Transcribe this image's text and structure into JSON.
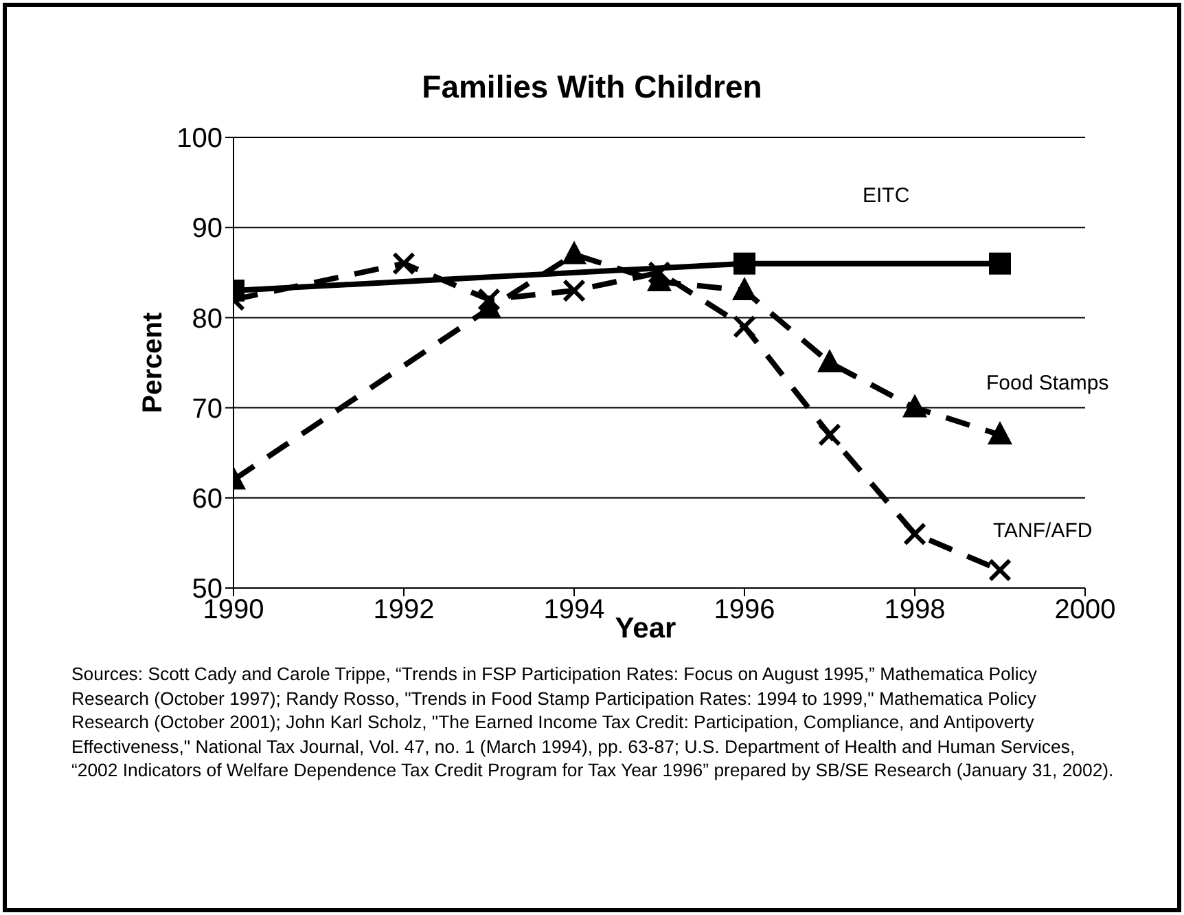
{
  "chart_data": {
    "type": "line",
    "title": "Families With Children",
    "xlabel": "Year",
    "ylabel": "Percent",
    "xlim": [
      1990,
      2000
    ],
    "xticks": [
      1990,
      1992,
      1994,
      1996,
      1998,
      2000
    ],
    "ylim": [
      50,
      100
    ],
    "yticks": [
      50,
      60,
      70,
      80,
      90,
      100
    ],
    "grid": "y",
    "legend": false,
    "series": [
      {
        "name": "EITC",
        "color": "#000000",
        "marker": "square",
        "line_style": "solid",
        "x": [
          1990,
          1996,
          1999
        ],
        "values": [
          83,
          86,
          86
        ]
      },
      {
        "name": "Food Stamps",
        "color": "#000000",
        "marker": "triangle",
        "line_style": "dashed",
        "x": [
          1990,
          1993,
          1994,
          1995,
          1996,
          1997,
          1998,
          1999
        ],
        "values": [
          62,
          81,
          87,
          84,
          83,
          75,
          70,
          67
        ]
      },
      {
        "name": "TANF/AFD",
        "color": "#000000",
        "marker": "cross",
        "line_style": "dashed",
        "x": [
          1990,
          1992,
          1993,
          1994,
          1995,
          1996,
          1997,
          1998,
          1999
        ],
        "values": [
          82,
          86,
          82,
          83,
          85,
          79,
          67,
          56,
          52
        ]
      }
    ],
    "annotations": [
      "Sources:  Scott Cady and Carole Trippe, “Trends in FSP Participation Rates: Focus on August 1995,” Mathematica Policy Research (October 1997);   Randy Rosso, \"Trends in Food Stamp Participation Rates: 1994 to 1999,\" Mathematica Policy Research (October 2001);  John Karl Scholz, \"The Earned Income Tax Credit: Participation, Compliance, and Antipoverty Effectiveness,\" National Tax Journal, Vol. 47, no. 1 (March 1994), pp. 63-87;  U.S. Department of Health and Human Services, “2002 Indicators of Welfare Dependence Tax Credit Program  for Tax Year 1996” prepared by  SB/SE Research (January 31, 2002)."
    ]
  }
}
